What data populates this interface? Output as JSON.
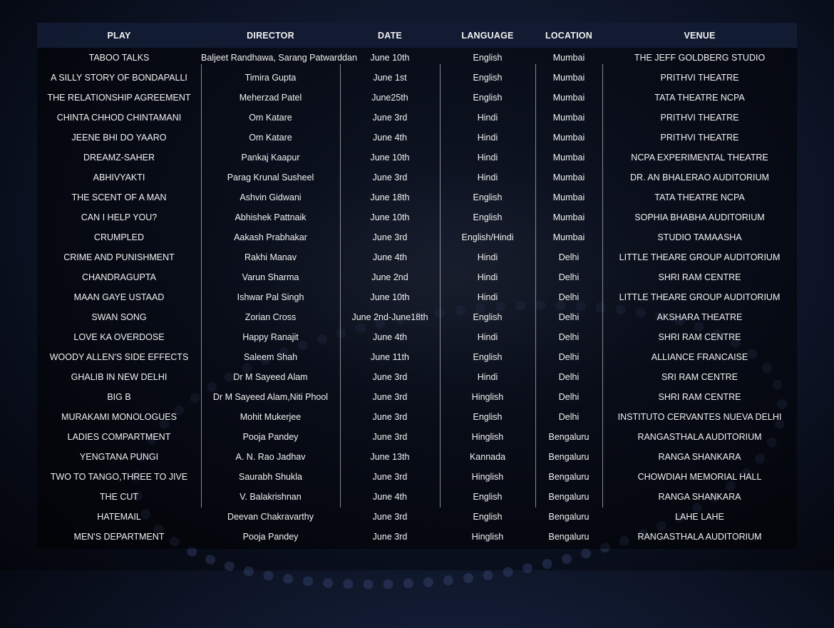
{
  "colors": {
    "background": "#0d1528",
    "header": "#141e37",
    "text": "#f2f2f2"
  },
  "headers": [
    "PLAY",
    "DIRECTOR",
    "DATE",
    "LANGUAGE",
    "LOCATION",
    "VENUE"
  ],
  "rows": [
    [
      "TABOO TALKS",
      "Baljeet Randhawa, Sarang Patwarddan",
      "June 10th",
      "English",
      "Mumbai",
      "THE JEFF GOLDBERG STUDIO"
    ],
    [
      "A SILLY STORY OF BONDAPALLI",
      "Timira Gupta",
      "June 1st",
      "English",
      "Mumbai",
      "PRITHVI THEATRE"
    ],
    [
      "THE RELATIONSHIP AGREEMENT",
      "Meherzad Patel",
      "June25th",
      "English",
      "Mumbai",
      "TATA THEATRE NCPA"
    ],
    [
      "CHINTA CHHOD CHINTAMANI",
      "Om Katare",
      "June 3rd",
      "Hindi",
      "Mumbai",
      "PRITHVI THEATRE"
    ],
    [
      "JEENE BHI DO YAARO",
      "Om Katare",
      "June 4th",
      "Hindi",
      "Mumbai",
      "PRITHVI THEATRE"
    ],
    [
      "DREAMZ-SAHER",
      "Pankaj Kaapur",
      "June 10th",
      "Hindi",
      "Mumbai",
      "NCPA EXPERIMENTAL THEATRE"
    ],
    [
      "ABHIVYAKTI",
      "Parag Krunal Susheel",
      "June 3rd",
      "Hindi",
      "Mumbai",
      "DR. AN BHALERAO AUDITORIUM"
    ],
    [
      "THE SCENT OF A MAN",
      "Ashvin Gidwani",
      "June 18th",
      "English",
      "Mumbai",
      "TATA THEATRE NCPA"
    ],
    [
      "CAN I HELP YOU?",
      "Abhishek Pattnaik",
      "June 10th",
      "English",
      "Mumbai",
      "SOPHIA BHABHA AUDITORIUM"
    ],
    [
      "CRUMPLED",
      "Aakash Prabhakar",
      "June 3rd",
      "English/Hindi",
      "Mumbai",
      "STUDIO TAMAASHA"
    ],
    [
      "CRIME AND PUNISHMENT",
      "Rakhi Manav",
      "June 4th",
      "Hindi",
      "Delhi",
      "LITTLE THEARE GROUP AUDITORIUM"
    ],
    [
      "CHANDRAGUPTA",
      "Varun Sharma",
      "June 2nd",
      "Hindi",
      "Delhi",
      "SHRI RAM CENTRE"
    ],
    [
      "MAAN GAYE USTAAD",
      "Ishwar Pal Singh",
      "June 10th",
      "Hindi",
      "Delhi",
      "LITTLE THEARE GROUP AUDITORIUM"
    ],
    [
      "SWAN SONG",
      "Zorian Cross",
      "June 2nd-June18th",
      "English",
      "Delhi",
      "AKSHARA THEATRE"
    ],
    [
      "LOVE KA OVERDOSE",
      "Happy Ranajit",
      "June 4th",
      "Hindi",
      "Delhi",
      "SHRI RAM CENTRE"
    ],
    [
      "WOODY ALLEN'S SIDE EFFECTS",
      "Saleem Shah",
      "June 11th",
      "English",
      "Delhi",
      "ALLIANCE FRANCAISE"
    ],
    [
      "GHALIB IN NEW DELHI",
      "Dr M Sayeed Alam",
      "June 3rd",
      "Hindi",
      "Delhi",
      "SRI RAM CENTRE"
    ],
    [
      "BIG B",
      "Dr M Sayeed Alam,Niti Phool",
      "June 3rd",
      "Hinglish",
      "Delhi",
      "SHRI RAM CENTRE"
    ],
    [
      "MURAKAMI MONOLOGUES",
      "Mohit Mukerjee",
      "June 3rd",
      "English",
      "Delhi",
      "INSTITUTO CERVANTES NUEVA DELHI"
    ],
    [
      "LADIES COMPARTMENT",
      "Pooja Pandey",
      "June 3rd",
      "Hinglish",
      "Bengaluru",
      "RANGASTHALA AUDITORIUM"
    ],
    [
      "YENGTANA PUNGI",
      "A. N. Rao Jadhav",
      "June 13th",
      "Kannada",
      "Bengaluru",
      "RANGA SHANKARA"
    ],
    [
      "TWO TO TANGO,THREE TO JIVE",
      "Saurabh Shukla",
      "June 3rd",
      "Hinglish",
      "Bengaluru",
      "CHOWDIAH MEMORIAL HALL"
    ],
    [
      "THE CUT",
      "V. Balakrishnan",
      "June 4th",
      "English",
      "Bengaluru",
      "RANGA SHANKARA"
    ],
    [
      "HATEMAIL",
      "Deevan Chakravarthy",
      "June 3rd",
      "English",
      "Bengaluru",
      "LAHE LAHE"
    ],
    [
      "MEN'S DEPARTMENT",
      "Pooja Pandey",
      "June 3rd",
      "Hinglish",
      "Bengaluru",
      "RANGASTHALA AUDITORIUM"
    ]
  ]
}
